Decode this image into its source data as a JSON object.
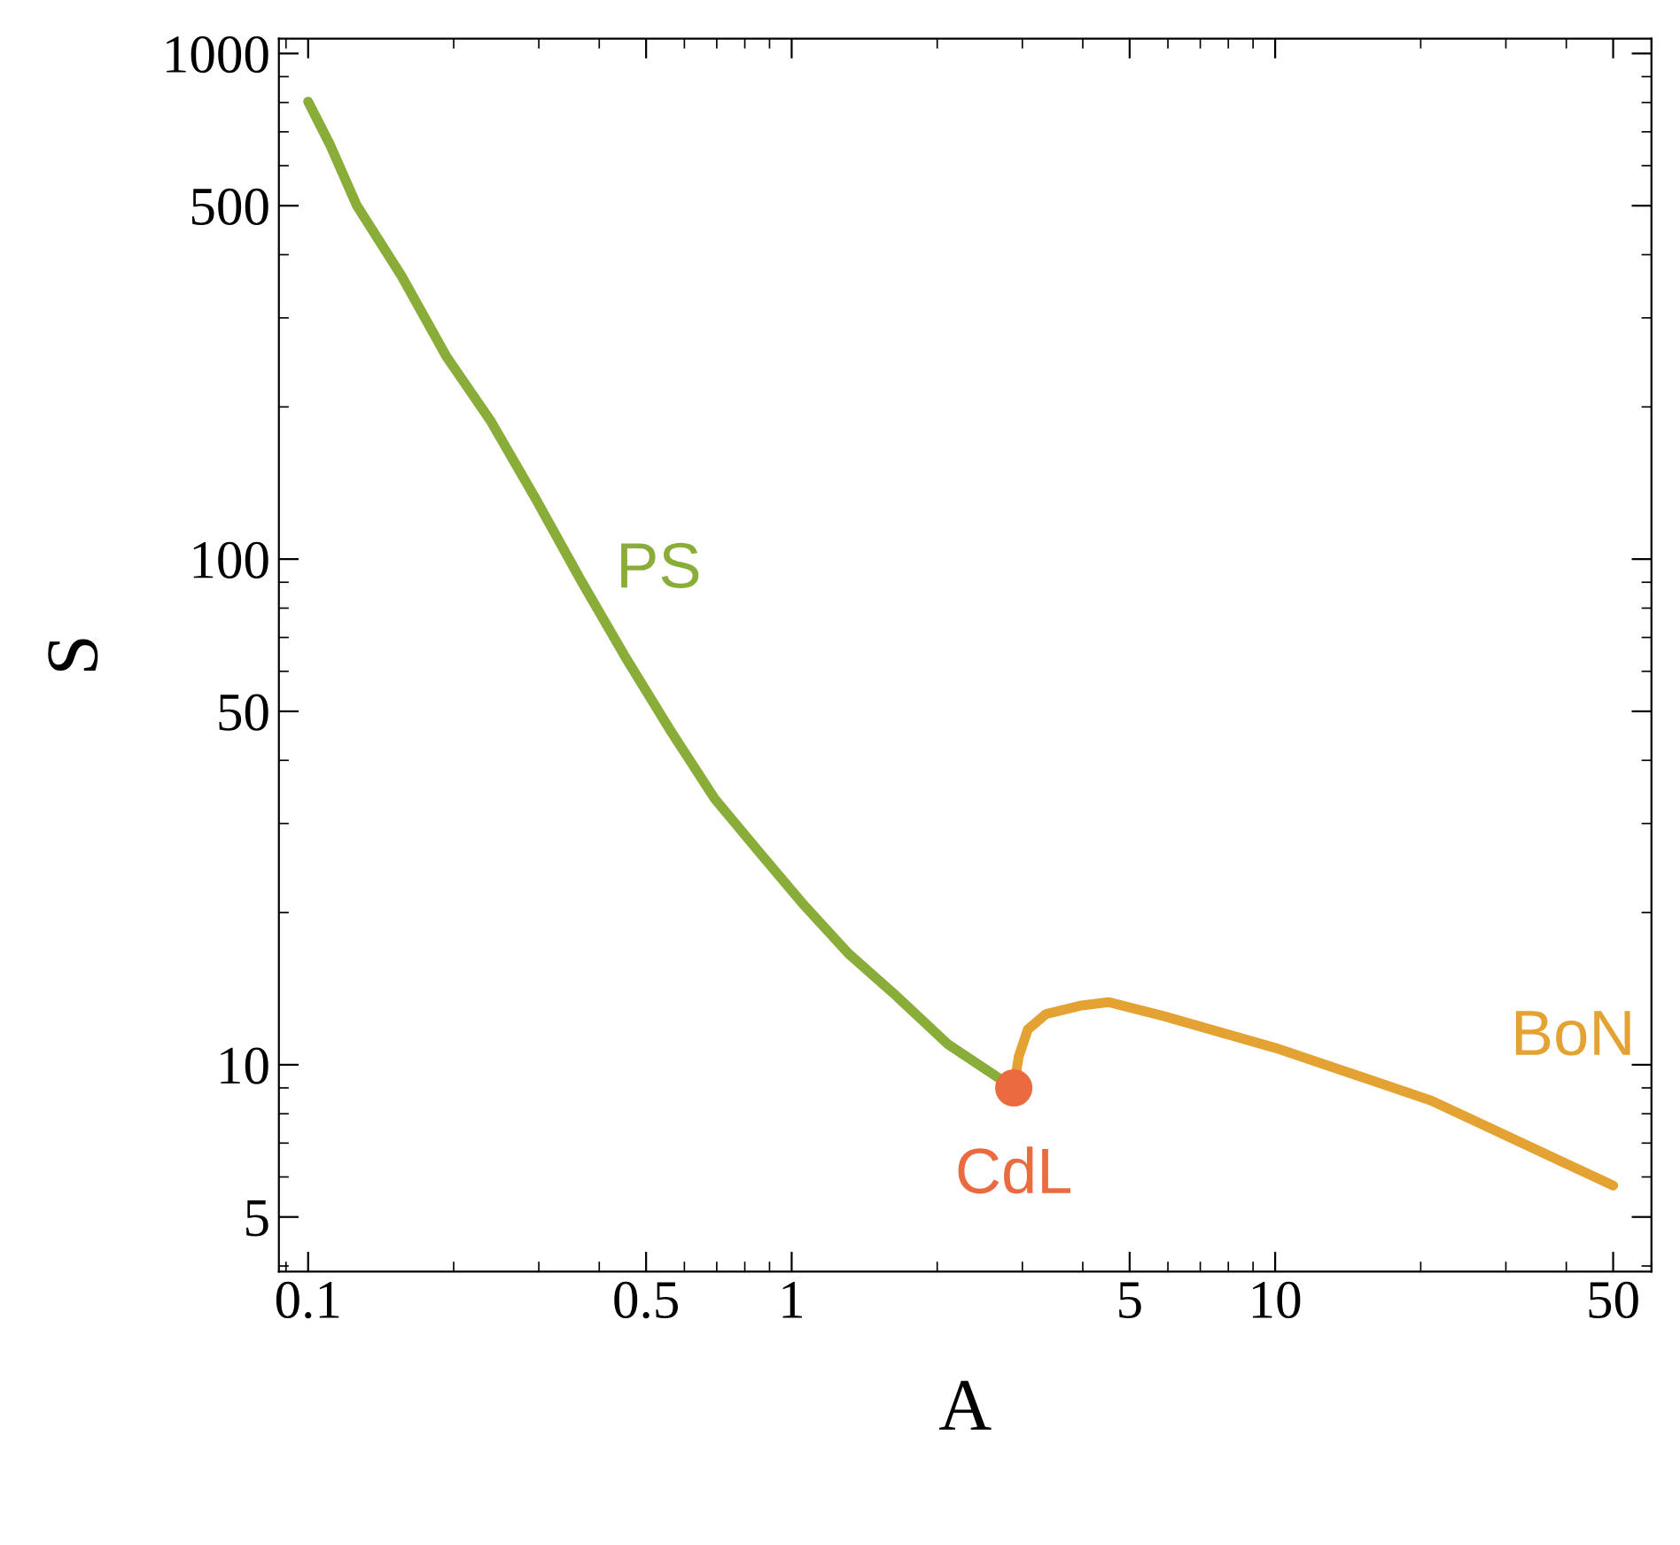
{
  "chart_data": {
    "type": "line",
    "xlabel": "A",
    "ylabel": "S",
    "log": "xy",
    "grid": false,
    "legend": false,
    "marker": "none",
    "line_style": "solid",
    "xlim": [
      0.087,
      60
    ],
    "ylim": [
      3.9,
      1070
    ],
    "xticks": [
      0.1,
      0.5,
      1,
      5,
      10,
      50
    ],
    "yticks": [
      5,
      10,
      50,
      100,
      500,
      1000
    ],
    "series": [
      {
        "name": "PS",
        "color": "#8aad3a",
        "x": [
          0.1,
          0.111,
          0.126,
          0.156,
          0.193,
          0.239,
          0.295,
          0.366,
          0.453,
          0.56,
          0.693,
          0.858,
          1.06,
          1.31,
          1.63,
          2.1,
          2.88
        ],
        "values": [
          803,
          660,
          501,
          363,
          252,
          187,
          132,
          91,
          64,
          46,
          33.6,
          26.3,
          20.7,
          16.6,
          13.8,
          11.0,
          9.0
        ]
      },
      {
        "name": "BoN",
        "color": "#e3a232",
        "x": [
          2.88,
          2.95,
          3.08,
          3.36,
          3.98,
          4.52,
          5.85,
          10,
          21,
          50
        ],
        "values": [
          9.0,
          10.4,
          11.75,
          12.6,
          13.1,
          13.3,
          12.5,
          10.8,
          8.5,
          5.77
        ]
      },
      {
        "name": "CdL",
        "type": "scatter",
        "marker": "circle",
        "color": "#ec6a40",
        "x": [
          2.88
        ],
        "values": [
          9.0
        ]
      }
    ]
  }
}
